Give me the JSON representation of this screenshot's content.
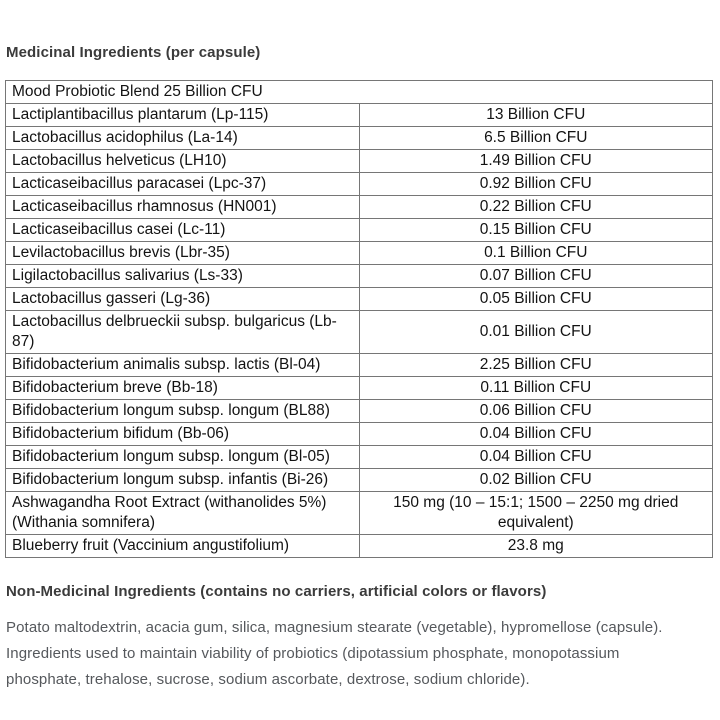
{
  "headings": {
    "medicinal": "Medicinal Ingredients (per capsule)",
    "non_medicinal": "Non-Medicinal Ingredients (contains no carriers, artificial colors or flavors)"
  },
  "table": {
    "blend_header": "Mood Probiotic Blend 25 Billion CFU",
    "rows": [
      {
        "ingredient": "Lactiplantibacillus plantarum (Lp-115)",
        "amount": "13 Billion CFU"
      },
      {
        "ingredient": "Lactobacillus acidophilus (La-14)",
        "amount": "6.5 Billion CFU"
      },
      {
        "ingredient": "Lactobacillus helveticus (LH10)",
        "amount": "1.49 Billion CFU"
      },
      {
        "ingredient": "Lacticaseibacillus paracasei (Lpc-37)",
        "amount": "0.92 Billion CFU"
      },
      {
        "ingredient": "Lacticaseibacillus rhamnosus (HN001)",
        "amount": "0.22 Billion CFU"
      },
      {
        "ingredient": "Lacticaseibacillus casei (Lc-11)",
        "amount": "0.15 Billion CFU"
      },
      {
        "ingredient": "Levilactobacillus brevis (Lbr-35)",
        "amount": "0.1 Billion CFU"
      },
      {
        "ingredient": "Ligilactobacillus salivarius (Ls-33)",
        "amount": "0.07 Billion CFU"
      },
      {
        "ingredient": "Lactobacillus gasseri (Lg-36)",
        "amount": "0.05 Billion CFU"
      },
      {
        "ingredient": "Lactobacillus delbrueckii subsp. bulgaricus (Lb-87)",
        "amount": "0.01 Billion CFU"
      },
      {
        "ingredient": "Bifidobacterium animalis subsp. lactis (Bl-04)",
        "amount": "2.25 Billion CFU"
      },
      {
        "ingredient": "Bifidobacterium breve (Bb-18)",
        "amount": "0.11 Billion CFU"
      },
      {
        "ingredient": "Bifidobacterium longum subsp. longum (BL88)",
        "amount": "0.06 Billion CFU"
      },
      {
        "ingredient": "Bifidobacterium bifidum (Bb-06)",
        "amount": "0.04 Billion CFU"
      },
      {
        "ingredient": "Bifidobacterium longum subsp. longum (Bl-05)",
        "amount": "0.04 Billion CFU"
      },
      {
        "ingredient": "Bifidobacterium longum subsp. infantis (Bi-26)",
        "amount": "0.02 Billion CFU"
      },
      {
        "ingredient": "Ashwagandha Root Extract (withanolides 5%) (Withania somnifera)",
        "amount": "150 mg (10 – 15:1; 1500 – 2250 mg dried equivalent)"
      },
      {
        "ingredient": "Blueberry fruit (Vaccinium angustifolium)",
        "amount": "23.8 mg"
      }
    ]
  },
  "non_medicinal_text": "Potato maltodextrin, acacia gum, silica, magnesium stearate (vegetable), hypromellose (capsule). Ingredients used to maintain viability of probiotics (dipotassium phosphate, monopotassium phosphate, trehalose, sucrose, sodium ascorbate, dextrose, sodium chloride).",
  "colors": {
    "heading_text": "#3b3b3b",
    "table_text": "#131313",
    "table_border": "#767676",
    "body_text": "#55585c",
    "background": "#ffffff"
  }
}
